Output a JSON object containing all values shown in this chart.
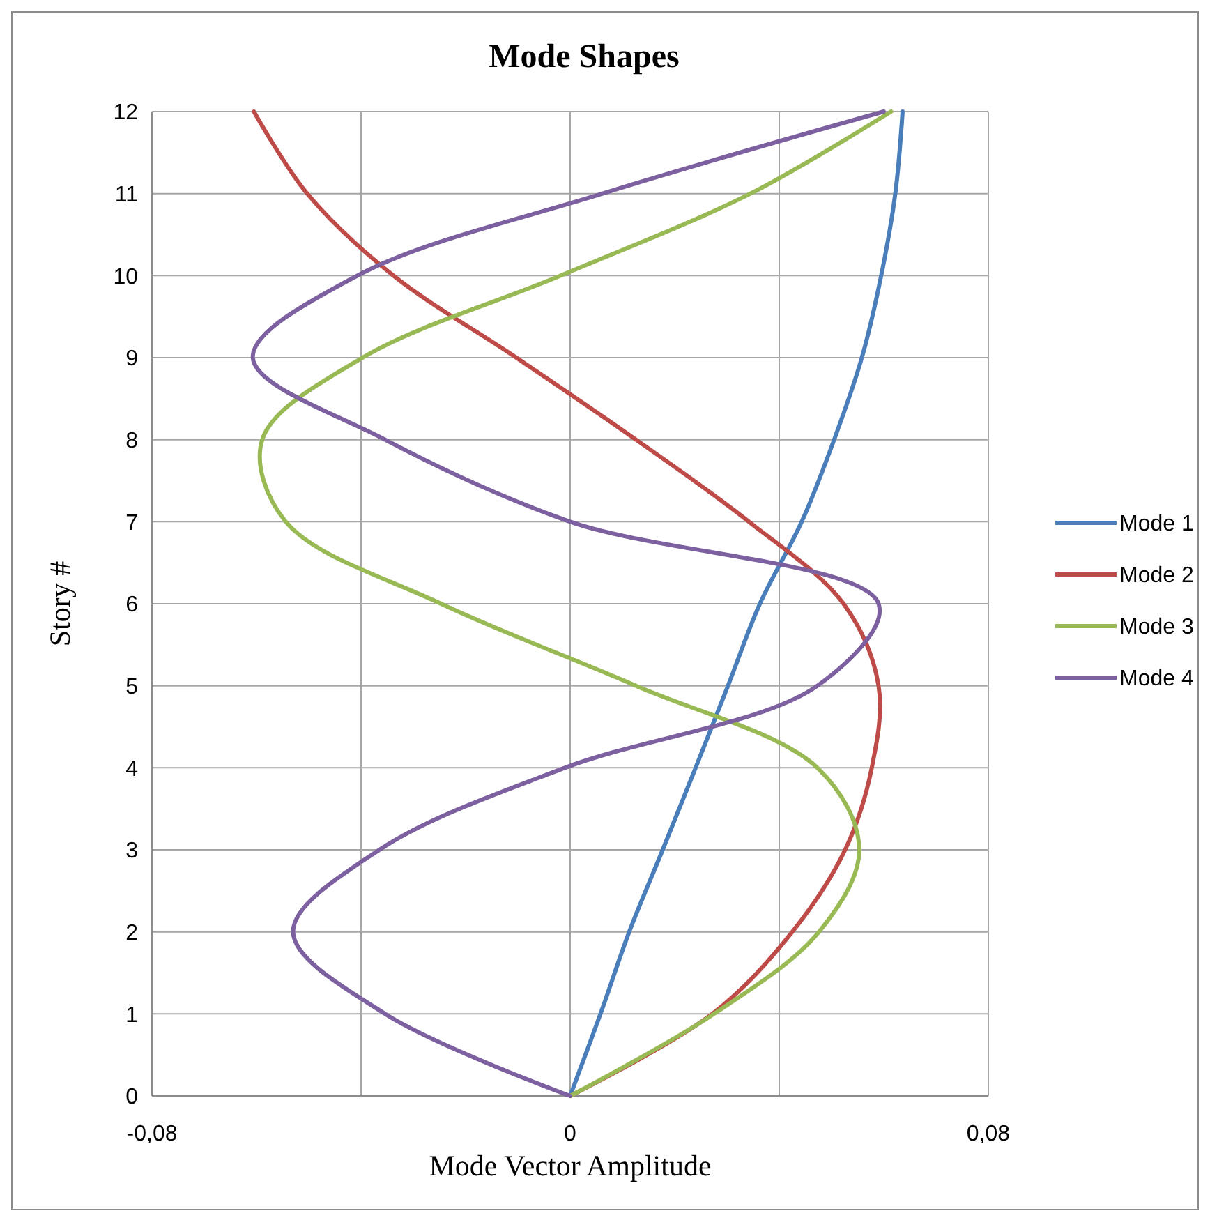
{
  "chart_data": {
    "type": "line",
    "title": "Mode Shapes",
    "xlabel": "Mode Vector Amplitude",
    "ylabel": "Story #",
    "xlim": [
      -0.08,
      0.08
    ],
    "xticks": [
      {
        "value": -0.08,
        "label": "-0,08"
      },
      {
        "value": -0.04,
        "label": null
      },
      0,
      {
        "value": 0.04,
        "label": null
      },
      {
        "value": 0.08,
        "label": "0,08"
      }
    ],
    "ylim": [
      0,
      12
    ],
    "yticks": [
      0,
      1,
      2,
      3,
      4,
      5,
      6,
      7,
      8,
      9,
      10,
      11,
      12
    ],
    "grid": true,
    "legend": "right",
    "marker": "none",
    "line_style": "solid",
    "series": [
      {
        "name": "Mode 1",
        "color": "#4a7ebb",
        "x": [
          0,
          0.0058,
          0.0113,
          0.0177,
          0.024,
          0.0302,
          0.0363,
          0.0443,
          0.0505,
          0.0558,
          0.0595,
          0.0622,
          0.0636
        ],
        "values": [
          0,
          1,
          2,
          3,
          4,
          5,
          6,
          7,
          8,
          9,
          10,
          11,
          12
        ]
      },
      {
        "name": "Mode 2",
        "color": "#be4b48",
        "x": [
          0,
          0.0272,
          0.0425,
          0.0526,
          0.0577,
          0.059,
          0.0523,
          0.0342,
          0.0126,
          -0.0103,
          -0.0338,
          -0.0503,
          -0.0605
        ],
        "values": [
          0,
          1,
          2,
          3,
          4,
          5,
          6,
          7,
          8,
          9,
          10,
          11,
          12
        ]
      },
      {
        "name": "Mode 3",
        "color": "#98b954",
        "x": [
          0,
          0.0275,
          0.0476,
          0.0553,
          0.0473,
          0.0126,
          -0.0247,
          -0.0544,
          -0.0589,
          -0.0397,
          -0.0018,
          0.0345,
          0.0614
        ],
        "values": [
          0,
          1,
          2,
          3,
          4,
          5,
          6,
          7,
          8,
          9,
          10,
          11,
          12
        ]
      },
      {
        "name": "Mode 4",
        "color": "#7d60a0",
        "x": [
          0,
          -0.0354,
          -0.053,
          -0.0365,
          -0.001,
          0.0473,
          0.059,
          0,
          -0.0354,
          -0.0607,
          -0.0407,
          0.0062,
          0.06
        ],
        "values": [
          0,
          1,
          2,
          3,
          4,
          5,
          6,
          7,
          8,
          9,
          10,
          11,
          12
        ]
      }
    ]
  }
}
